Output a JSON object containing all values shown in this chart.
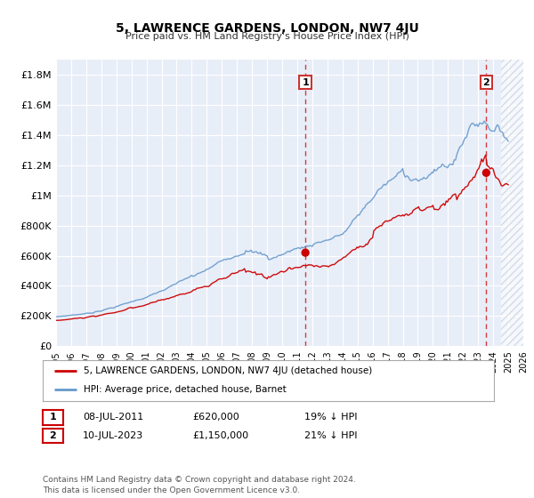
{
  "title": "5, LAWRENCE GARDENS, LONDON, NW7 4JU",
  "subtitle": "Price paid vs. HM Land Registry's House Price Index (HPI)",
  "xlim": [
    1995,
    2026
  ],
  "ylim": [
    0,
    1900000
  ],
  "yticks": [
    0,
    200000,
    400000,
    600000,
    800000,
    1000000,
    1200000,
    1400000,
    1600000,
    1800000
  ],
  "ytick_labels": [
    "£0",
    "£200K",
    "£400K",
    "£600K",
    "£800K",
    "£1M",
    "£1.2M",
    "£1.4M",
    "£1.6M",
    "£1.8M"
  ],
  "xticks": [
    1995,
    1996,
    1997,
    1998,
    1999,
    2000,
    2001,
    2002,
    2003,
    2004,
    2005,
    2006,
    2007,
    2008,
    2009,
    2010,
    2011,
    2012,
    2013,
    2014,
    2015,
    2016,
    2017,
    2018,
    2019,
    2020,
    2021,
    2022,
    2023,
    2024,
    2025,
    2026
  ],
  "red_line_color": "#cc0000",
  "blue_line_color": "#6699cc",
  "background_color": "#e8eef8",
  "grid_color": "#c8d4e8",
  "future_hatch_color": "#c0c8d8",
  "sale1_x": 2011.54,
  "sale1_y": 620000,
  "sale2_x": 2023.54,
  "sale2_y": 1150000,
  "future_cutoff": 2024.5,
  "legend_label_red": "5, LAWRENCE GARDENS, LONDON, NW7 4JU (detached house)",
  "legend_label_blue": "HPI: Average price, detached house, Barnet",
  "annotation1_label": "1",
  "annotation2_label": "2",
  "table_row1": [
    "1",
    "08-JUL-2011",
    "£620,000",
    "19% ↓ HPI"
  ],
  "table_row2": [
    "2",
    "10-JUL-2023",
    "£1,150,000",
    "21% ↓ HPI"
  ],
  "footer": "Contains HM Land Registry data © Crown copyright and database right 2024.\nThis data is licensed under the Open Government Licence v3.0."
}
